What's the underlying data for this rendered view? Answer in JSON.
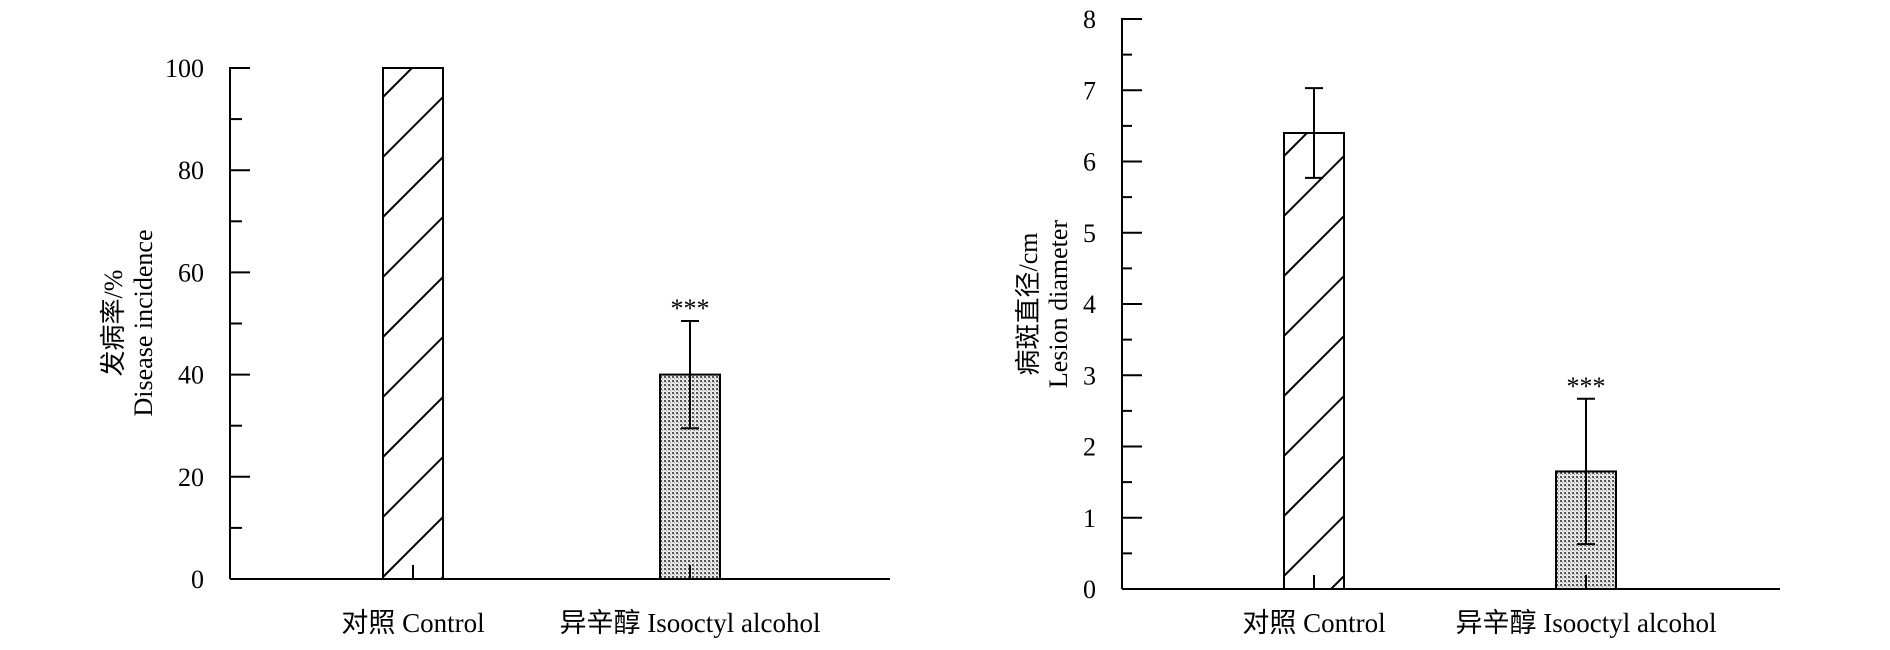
{
  "chart_data": [
    {
      "type": "bar",
      "categories": [
        "对照 Control",
        "异辛醇 Isooctyl alcohol"
      ],
      "values": [
        100,
        40
      ],
      "error": [
        0,
        10.5
      ],
      "annotations": [
        "",
        "***"
      ],
      "patterns": [
        "diagonal-hatch",
        "stipple"
      ],
      "ylabel": [
        "发病率/%",
        "Disease incidence"
      ],
      "ylim": [
        0,
        100
      ],
      "yticks": [
        0,
        20,
        40,
        60,
        80,
        100
      ],
      "title": "",
      "xlabel": "",
      "grid": false
    },
    {
      "type": "bar",
      "categories": [
        "对照 Control",
        "异辛醇 Isooctyl alcohol"
      ],
      "values": [
        6.4,
        1.65
      ],
      "error": [
        0.63,
        1.02
      ],
      "annotations": [
        "",
        "***"
      ],
      "patterns": [
        "diagonal-hatch",
        "stipple"
      ],
      "ylabel": [
        "病斑直径/cm",
        "Lesion diameter"
      ],
      "ylim": [
        0,
        8
      ],
      "yticks": [
        0,
        1,
        2,
        3,
        4,
        5,
        6,
        7,
        8
      ],
      "title": "",
      "xlabel": "",
      "grid": false
    }
  ]
}
